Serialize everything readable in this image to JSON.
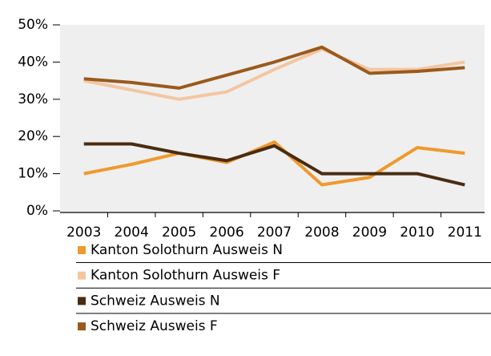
{
  "chart_data": {
    "type": "line",
    "categories": [
      "2003",
      "2004",
      "2005",
      "2006",
      "2007",
      "2008",
      "2009",
      "2010",
      "2011"
    ],
    "series": [
      {
        "name": "Kanton Solothurn Ausweis N",
        "color": "#ee9a2e",
        "values": [
          10,
          12.5,
          15.5,
          13,
          18.5,
          7,
          9,
          17,
          15.5
        ]
      },
      {
        "name": "Kanton Solothurn Ausweis F",
        "color": "#f3c6a2",
        "values": [
          35,
          32.5,
          30,
          32,
          38,
          43.5,
          38,
          38,
          40
        ]
      },
      {
        "name": "Schweiz Ausweis N",
        "color": "#4a2c12",
        "values": [
          18,
          18,
          15.5,
          13.5,
          17.5,
          10,
          10,
          10,
          7
        ]
      },
      {
        "name": "Schweiz Ausweis F",
        "color": "#9a5a1c",
        "values": [
          35.5,
          34.5,
          33,
          36.5,
          40,
          44,
          37,
          37.5,
          38.5
        ]
      }
    ],
    "ylim": [
      0,
      50
    ],
    "yticks": [
      {
        "value": 0,
        "label": "0%"
      },
      {
        "value": 10,
        "label": "10%"
      },
      {
        "value": 20,
        "label": "20%"
      },
      {
        "value": 30,
        "label": "30%"
      },
      {
        "value": 40,
        "label": "40%"
      },
      {
        "value": 50,
        "label": "50%"
      }
    ],
    "background": "#efefef"
  }
}
